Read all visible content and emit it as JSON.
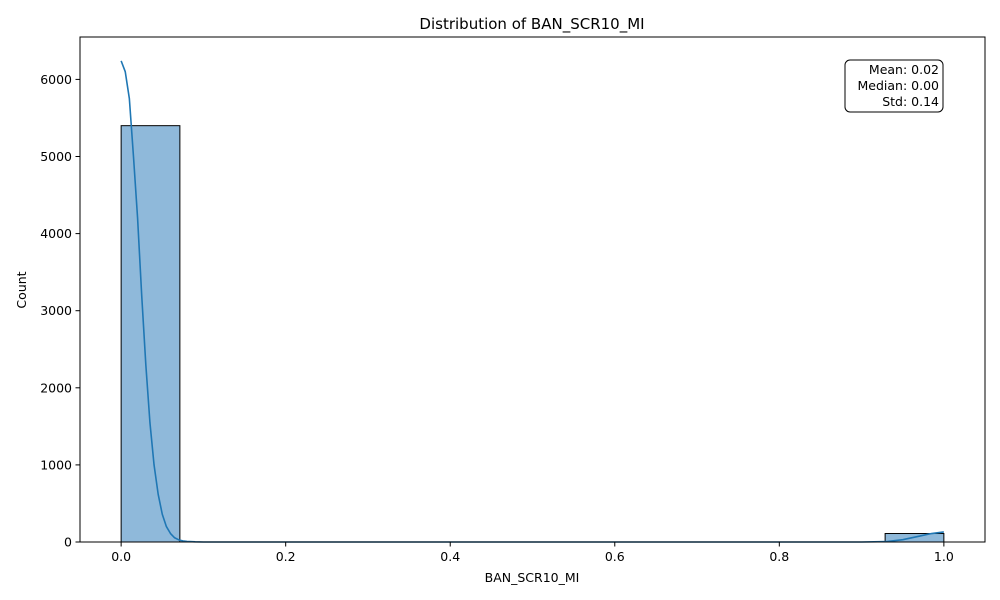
{
  "chart_data": {
    "type": "bar",
    "title": "Distribution of BAN_SCR10_MI",
    "xlabel": "BAN_SCR10_MI",
    "ylabel": "Count",
    "xlim": [
      -0.05,
      1.05
    ],
    "ylim": [
      0,
      6550
    ],
    "xticks": [
      0.0,
      0.2,
      0.4,
      0.6,
      0.8,
      1.0
    ],
    "xtick_labels": [
      "0.0",
      "0.2",
      "0.4",
      "0.6",
      "0.8",
      "1.0"
    ],
    "yticks": [
      0,
      1000,
      2000,
      3000,
      4000,
      5000,
      6000
    ],
    "ytick_labels": [
      "0",
      "1000",
      "2000",
      "3000",
      "4000",
      "5000",
      "6000"
    ],
    "grid": false,
    "bins": [
      {
        "x0": 0.0,
        "x1": 0.0714,
        "count": 5400
      },
      {
        "x0": 0.9286,
        "x1": 1.0,
        "count": 110
      }
    ],
    "kde": {
      "x": [
        0.0,
        0.005,
        0.01,
        0.015,
        0.02,
        0.025,
        0.03,
        0.035,
        0.04,
        0.045,
        0.05,
        0.055,
        0.06,
        0.065,
        0.07,
        0.075,
        0.08,
        0.09,
        0.1,
        0.12,
        0.2,
        0.4,
        0.6,
        0.8,
        0.9,
        0.93,
        0.95,
        0.97,
        0.985,
        1.0
      ],
      "y": [
        6240,
        6100,
        5750,
        5000,
        4200,
        3200,
        2300,
        1550,
        1000,
        620,
        360,
        200,
        110,
        55,
        28,
        14,
        7,
        2,
        0,
        0,
        0,
        0,
        0,
        0,
        0,
        5,
        30,
        75,
        110,
        130
      ]
    },
    "stats": {
      "mean": "Mean: 0.02",
      "median": "Median: 0.00",
      "std": "Std: 0.14"
    },
    "colors": {
      "bar_fill": "#8fb9da",
      "bar_edge": "#000000",
      "kde_line": "#1f77b4"
    }
  }
}
